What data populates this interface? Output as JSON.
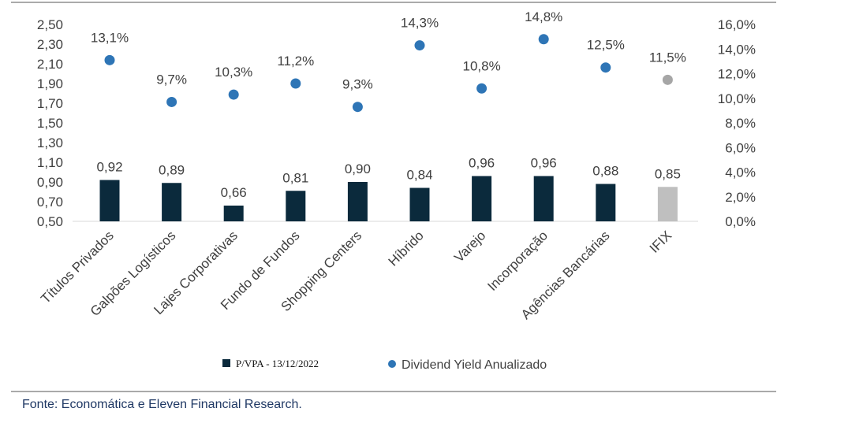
{
  "chart_data": {
    "type": "bar",
    "categories": [
      "Títulos Privados",
      "Galpões Logísticos",
      "Lajes Corporativas",
      "Fundo de Fundos",
      "Shopping Centers",
      "Híbrido",
      "Varejo",
      "Incorporação",
      "Agências Bancárias",
      "IFIX"
    ],
    "series": [
      {
        "name": "P/VPA - 13/12/2022",
        "type": "bar",
        "axis": "left",
        "values": [
          0.92,
          0.89,
          0.66,
          0.81,
          0.9,
          0.84,
          0.96,
          0.96,
          0.88,
          0.85
        ],
        "labels": [
          "0,92",
          "0,89",
          "0,66",
          "0,81",
          "0,90",
          "0,84",
          "0,96",
          "0,96",
          "0,88",
          "0,85"
        ]
      },
      {
        "name": "Dividend Yield Anualizado",
        "type": "scatter",
        "axis": "right",
        "values": [
          13.1,
          9.7,
          10.3,
          11.2,
          9.3,
          14.3,
          10.8,
          14.8,
          12.5,
          11.5
        ],
        "labels": [
          "13,1%",
          "9,7%",
          "10,3%",
          "11,2%",
          "9,3%",
          "14,3%",
          "10,8%",
          "14,8%",
          "12,5%",
          "11,5%"
        ]
      }
    ],
    "y_left": {
      "ylim": [
        0.5,
        2.5
      ],
      "ticks": [
        "0,50",
        "0,70",
        "0,90",
        "1,10",
        "1,30",
        "1,50",
        "1,70",
        "1,90",
        "2,10",
        "2,30",
        "2,50"
      ]
    },
    "y_right": {
      "ylim": [
        0,
        16
      ],
      "ticks": [
        "0,0%",
        "2,0%",
        "4,0%",
        "6,0%",
        "8,0%",
        "10,0%",
        "12,0%",
        "14,0%",
        "16,0%"
      ]
    },
    "colors": {
      "bar": "#0b2a3c",
      "bar_highlight": "#bfbfbf",
      "dot": "#2e75b6",
      "dot_highlight": "#a6a6a6"
    },
    "highlight_category": "IFIX",
    "grid": false,
    "legend_position": "bottom"
  },
  "source_note": "Fonte: Economática e Eleven Financial Research."
}
